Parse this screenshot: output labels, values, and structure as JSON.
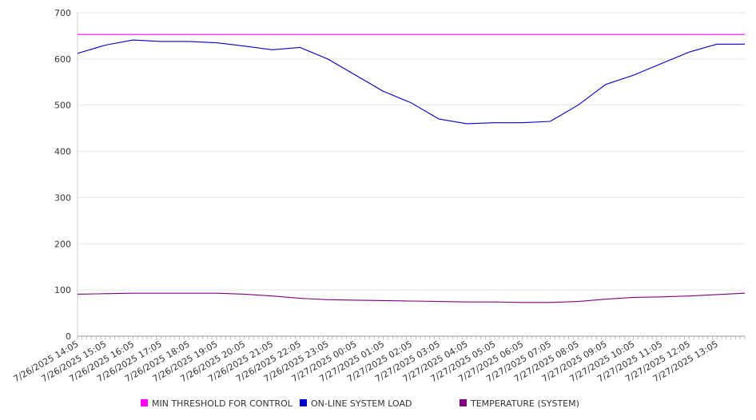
{
  "chart_data": {
    "type": "line",
    "title": "",
    "xlabel": "",
    "ylabel": "",
    "ylim": [
      0,
      700
    ],
    "yticks": [
      0,
      100,
      200,
      300,
      400,
      500,
      600,
      700
    ],
    "x_start": "7/26/2025 14:05",
    "x_end": "7/27/2025 14:05",
    "x_step_minutes": 5,
    "xtick_labels": [
      "7/26/2025 14:05",
      "7/26/2025 15:05",
      "7/26/2025 16:05",
      "7/26/2025 17:05",
      "7/26/2025 18:05",
      "7/26/2025 19:05",
      "7/26/2025 20:05",
      "7/26/2025 21:05",
      "7/26/2025 22:05",
      "7/26/2025 23:05",
      "7/27/2025 00:05",
      "7/27/2025 01:05",
      "7/27/2025 02:05",
      "7/27/2025 03:05",
      "7/27/2025 04:05",
      "7/27/2025 05:05",
      "7/27/2025 06:05",
      "7/27/2025 07:05",
      "7/27/2025 08:05",
      "7/27/2025 09:05",
      "7/27/2025 10:05",
      "7/27/2025 11:05",
      "7/27/2025 12:05",
      "7/27/2025 13:05"
    ],
    "grid": true,
    "legend_position": "bottom",
    "series": [
      {
        "name": "MIN THRESHOLD FOR CONTROL",
        "color": "#ff00ff",
        "values": [
          653,
          653,
          653,
          653,
          653,
          653,
          653,
          653,
          653,
          653,
          653,
          653,
          653,
          653,
          653,
          653,
          653,
          653,
          653,
          653,
          653,
          653,
          653,
          653,
          653
        ]
      },
      {
        "name": "ON-LINE SYSTEM LOAD",
        "color": "#0000cc",
        "values": [
          612,
          630,
          641,
          638,
          638,
          635,
          628,
          620,
          625,
          600,
          565,
          530,
          505,
          470,
          460,
          462,
          462,
          465,
          500,
          545,
          565,
          590,
          615,
          632,
          632
        ]
      },
      {
        "name": "TEMPERATURE (SYSTEM)",
        "color": "#800080",
        "values": [
          91,
          92,
          93,
          93,
          93,
          93,
          91,
          87,
          82,
          79,
          78,
          77,
          76,
          75,
          74,
          74,
          73,
          73,
          75,
          80,
          84,
          85,
          87,
          90,
          93
        ]
      }
    ]
  }
}
